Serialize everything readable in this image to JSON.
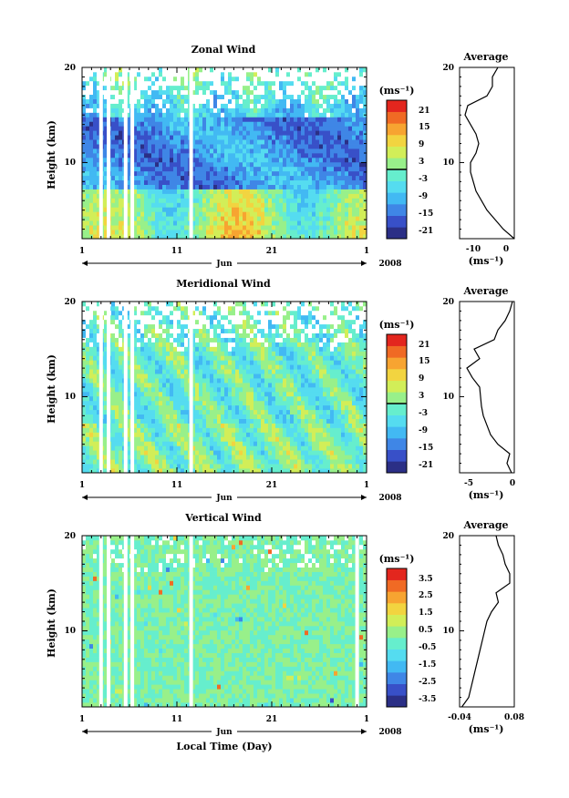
{
  "figure": {
    "year_label": "2008",
    "month_label": "Jun",
    "xlabel": "Local Time (Day)"
  },
  "chart_data": [
    {
      "type": "heatmap",
      "title": "Zonal Wind",
      "xlabel": "Local Time (Day)",
      "ylabel": "Height (km)",
      "x_ticks": [
        "1",
        "11",
        "21",
        "1"
      ],
      "x_range_days": [
        1,
        31
      ],
      "y_ticks": [
        "10",
        "20"
      ],
      "ylim": [
        2,
        20
      ],
      "colorbar": {
        "unit": "(ms⁻¹)",
        "labels": [
          "21",
          "15",
          "9",
          "3",
          "-3",
          "-9",
          "-15",
          "-21"
        ],
        "range": [
          -24,
          24
        ],
        "zero_contour_level": 0
      },
      "missing_days": [
        3.0,
        3.8,
        5.6,
        6.3,
        12.5
      ],
      "profile": {
        "title": "Average",
        "xlabel": "(ms⁻¹)",
        "x_ticks": [
          "-10",
          "0"
        ],
        "xlim": [
          -18,
          2
        ],
        "heights": [
          2,
          3,
          4,
          5,
          6,
          7,
          8,
          9,
          10,
          11,
          12,
          13,
          14,
          15,
          16,
          17,
          18,
          19,
          20
        ],
        "values": [
          2,
          -2,
          -5,
          -8,
          -10,
          -12,
          -13,
          -14,
          -14,
          -12,
          -11,
          -12,
          -14,
          -16,
          -15,
          -8,
          -6,
          -6,
          -4
        ]
      }
    },
    {
      "type": "heatmap",
      "title": "Meridional Wind",
      "xlabel": "Local Time (Day)",
      "ylabel": "Height (km)",
      "x_ticks": [
        "1",
        "11",
        "21",
        "1"
      ],
      "x_range_days": [
        1,
        31
      ],
      "y_ticks": [
        "10",
        "20"
      ],
      "ylim": [
        2,
        20
      ],
      "colorbar": {
        "unit": "(ms⁻¹)",
        "labels": [
          "21",
          "15",
          "9",
          "3",
          "-3",
          "-9",
          "-15",
          "-21"
        ],
        "range": [
          -24,
          24
        ],
        "zero_contour_level": 0
      },
      "missing_days": [
        3.0,
        3.8,
        5.6,
        6.3,
        12.5
      ],
      "profile": {
        "title": "Average",
        "xlabel": "(ms⁻¹)",
        "x_ticks": [
          "-5",
          "0"
        ],
        "xlim": [
          -6,
          0
        ],
        "heights": [
          2,
          3,
          4,
          5,
          6,
          7,
          8,
          9,
          10,
          11,
          12,
          13,
          14,
          15,
          16,
          17,
          18,
          19,
          20
        ],
        "values": [
          -0.3,
          -0.8,
          -0.5,
          -1.8,
          -2.6,
          -3.0,
          -3.4,
          -3.6,
          -3.7,
          -3.8,
          -4.6,
          -5.2,
          -3.8,
          -4.4,
          -2.2,
          -1.8,
          -1.0,
          -0.5,
          -0.2
        ]
      }
    },
    {
      "type": "heatmap",
      "title": "Vertical Wind",
      "xlabel": "Local Time (Day)",
      "ylabel": "Height (km)",
      "x_ticks": [
        "1",
        "11",
        "21",
        "1"
      ],
      "x_range_days": [
        1,
        31
      ],
      "y_ticks": [
        "10",
        "20"
      ],
      "ylim": [
        2,
        20
      ],
      "colorbar": {
        "unit": "(ms⁻¹)",
        "labels": [
          "3.5",
          "2.5",
          "1.5",
          "0.5",
          "-0.5",
          "-1.5",
          "-2.5",
          "-3.5"
        ],
        "range": [
          -4,
          4
        ]
      },
      "missing_days": [
        3.0,
        3.8,
        5.6,
        6.3,
        12.5,
        30.0
      ],
      "profile": {
        "title": "Average",
        "xlabel": "(ms⁻¹)",
        "x_ticks": [
          "-0.04",
          "0.08"
        ],
        "xlim": [
          -0.04,
          0.08
        ],
        "heights": [
          2,
          3,
          4,
          5,
          6,
          7,
          8,
          9,
          10,
          11,
          12,
          13,
          14,
          15,
          16,
          17,
          18,
          19,
          20
        ],
        "values": [
          -0.035,
          -0.02,
          -0.015,
          -0.01,
          -0.005,
          0.0,
          0.005,
          0.01,
          0.015,
          0.02,
          0.03,
          0.045,
          0.04,
          0.07,
          0.07,
          0.06,
          0.055,
          0.045,
          0.04
        ]
      }
    }
  ]
}
